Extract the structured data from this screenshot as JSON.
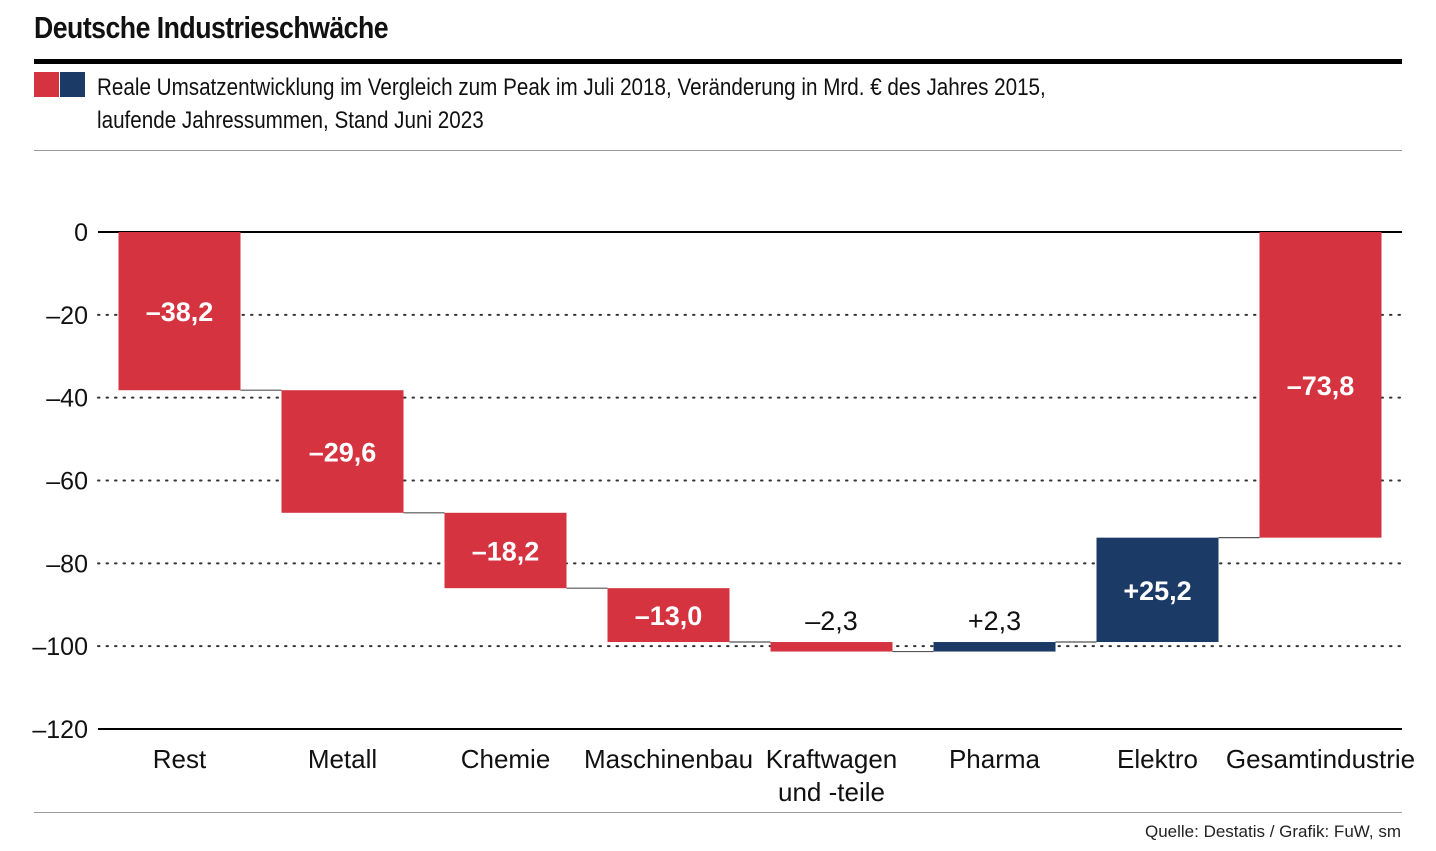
{
  "header": {
    "title": "Deutsche Industrieschwäche",
    "subtitle_line1": "Reale Umsatzentwicklung im Vergleich zum Peak im Juli 2018, Veränderung in Mrd. € des Jahres 2015,",
    "subtitle_line2": "laufende Jahressummen, Stand Juni 2023"
  },
  "footer": {
    "source": "Quelle: Destatis / Grafik: FuW, sm"
  },
  "colors": {
    "negative": "#d63340",
    "positive": "#1b3a66",
    "legend_red": "#d63340",
    "legend_blue": "#1b3a66"
  },
  "chart_data": {
    "type": "waterfall",
    "title": "Deutsche Industrieschwäche",
    "ylim": [
      -120,
      0
    ],
    "yticks": [
      0,
      -20,
      -40,
      -60,
      -80,
      -100,
      -120
    ],
    "ytick_labels": [
      "0",
      "–20",
      "–40",
      "–60",
      "–80",
      "–100",
      "–120"
    ],
    "grid": "dotted horizontal",
    "categories": [
      "Rest",
      "Metall",
      "Chemie",
      "Maschinenbau",
      "Kraftwagen und -teile",
      "Pharma",
      "Elektro",
      "Gesamtindustrie"
    ],
    "category_lines": [
      [
        "Rest"
      ],
      [
        "Metall"
      ],
      [
        "Chemie"
      ],
      [
        "Maschinenbau"
      ],
      [
        "Kraftwagen",
        "und -teile"
      ],
      [
        "Pharma"
      ],
      [
        "Elektro"
      ],
      [
        "Gesamtindustrie"
      ]
    ],
    "values": [
      -38.2,
      -29.6,
      -18.2,
      -13.0,
      -2.3,
      2.3,
      25.2,
      -73.8
    ],
    "labels": [
      "–38,2",
      "–29,6",
      "–18,2",
      "–13,0",
      "–2,3",
      "+2,3",
      "+25,2",
      "–73,8"
    ],
    "is_total": [
      false,
      false,
      false,
      false,
      false,
      false,
      false,
      true
    ]
  }
}
